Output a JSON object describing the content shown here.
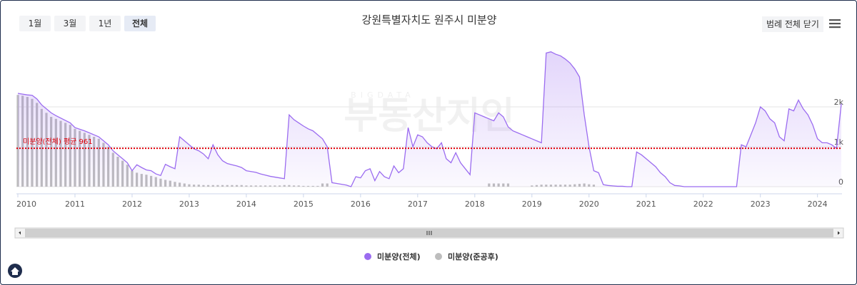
{
  "chart_data": {
    "type": "line",
    "title": "강원특별자치도 원주시 미분양",
    "buttons": [
      "1월",
      "3월",
      "1년",
      "전체"
    ],
    "active_button": 3,
    "legend_toggle": "범례 전체 닫기",
    "watermark": [
      "BIGDATA",
      "부동산지인"
    ],
    "categories": [
      "2010",
      null,
      null,
      null,
      null,
      null,
      null,
      null,
      null,
      null,
      null,
      null,
      "2011",
      null,
      null,
      null,
      null,
      null,
      null,
      null,
      null,
      null,
      null,
      null,
      "2012",
      null,
      null,
      null,
      null,
      null,
      null,
      null,
      null,
      null,
      null,
      null,
      "2013",
      null,
      null,
      null,
      null,
      null,
      null,
      null,
      null,
      null,
      null,
      null,
      "2014",
      null,
      null,
      null,
      null,
      null,
      null,
      null,
      null,
      null,
      null,
      null,
      "2015",
      null,
      null,
      null,
      null,
      null,
      null,
      null,
      null,
      null,
      null,
      null,
      "2016",
      null,
      null,
      null,
      null,
      null,
      null,
      null,
      null,
      null,
      null,
      null,
      "2017",
      null,
      null,
      null,
      null,
      null,
      null,
      null,
      null,
      null,
      null,
      null,
      "2018",
      null,
      null,
      null,
      null,
      null,
      null,
      null,
      null,
      null,
      null,
      null,
      "2019",
      null,
      null,
      null,
      null,
      null,
      null,
      null,
      null,
      null,
      null,
      null,
      "2020",
      null,
      null,
      null,
      null,
      null,
      null,
      null,
      null,
      null,
      null,
      null,
      "2021",
      null,
      null,
      null,
      null,
      null,
      null,
      null,
      null,
      null,
      null,
      null,
      "2022",
      null,
      null,
      null,
      null,
      null,
      null,
      null,
      null,
      null,
      null,
      null,
      "2023",
      null,
      null,
      null,
      null,
      null,
      null,
      null,
      null,
      null,
      null,
      null,
      "2024",
      null,
      null,
      null,
      null,
      null
    ],
    "series": [
      {
        "name": "미분양(전체)",
        "color": "#9b6cf0",
        "kind": "area",
        "values": [
          2340,
          2320,
          2300,
          2290,
          2200,
          2050,
          1950,
          1850,
          1780,
          1720,
          1660,
          1600,
          1480,
          1440,
          1400,
          1350,
          1300,
          1250,
          1150,
          1050,
          900,
          800,
          700,
          600,
          400,
          550,
          480,
          420,
          400,
          320,
          280,
          560,
          500,
          450,
          1250,
          1150,
          1050,
          950,
          900,
          820,
          700,
          1050,
          800,
          650,
          580,
          550,
          520,
          480,
          400,
          380,
          360,
          320,
          290,
          260,
          240,
          220,
          200,
          1800,
          1680,
          1600,
          1520,
          1450,
          1400,
          1300,
          1200,
          1000,
          100,
          80,
          60,
          40,
          0,
          250,
          220,
          400,
          450,
          150,
          380,
          250,
          200,
          520,
          350,
          450,
          1480,
          1000,
          1300,
          1250,
          1100,
          1000,
          950,
          1100,
          700,
          600,
          850,
          600,
          450,
          300,
          1850,
          1800,
          1750,
          1700,
          1650,
          1850,
          1750,
          1500,
          1400,
          1350,
          1300,
          1250,
          1200,
          1150,
          1100,
          3350,
          3380,
          3320,
          3280,
          3200,
          3100,
          2950,
          2750,
          1800,
          1000,
          400,
          350,
          50,
          30,
          20,
          10,
          10,
          0,
          0,
          870,
          800,
          700,
          600,
          500,
          350,
          250,
          100,
          30,
          20,
          0,
          0,
          0,
          0,
          0,
          0,
          0,
          0,
          0,
          0,
          0,
          0,
          1050,
          1000,
          1300,
          1600,
          2000,
          1900,
          1700,
          1600,
          1250,
          1150,
          1950,
          1900,
          2170,
          1950,
          1800,
          1550,
          1200,
          1100,
          1100,
          1050,
          960,
          2080
        ]
      },
      {
        "name": "미분양(준공후)",
        "color": "#bdbdbd",
        "kind": "bar",
        "values": [
          2300,
          2280,
          2250,
          2200,
          2100,
          1950,
          1850,
          1750,
          1700,
          1650,
          1600,
          1550,
          1450,
          1400,
          1350,
          1300,
          1250,
          1200,
          1100,
          1000,
          850,
          750,
          650,
          550,
          400,
          350,
          320,
          300,
          270,
          240,
          200,
          170,
          150,
          120,
          100,
          80,
          60,
          50,
          50,
          40,
          40,
          40,
          40,
          40,
          40,
          40,
          40,
          40,
          30,
          30,
          30,
          30,
          30,
          30,
          30,
          30,
          40,
          40,
          30,
          30,
          20,
          20,
          20,
          20,
          80,
          80,
          0,
          0,
          0,
          0,
          0,
          0,
          0,
          0,
          0,
          0,
          0,
          0,
          0,
          0,
          0,
          0,
          0,
          0,
          0,
          0,
          0,
          0,
          0,
          0,
          0,
          0,
          0,
          0,
          0,
          0,
          0,
          0,
          0,
          80,
          80,
          80,
          80,
          80,
          0,
          0,
          0,
          0,
          30,
          40,
          50,
          50,
          50,
          50,
          50,
          50,
          50,
          60,
          70,
          80,
          60,
          50,
          0,
          0,
          0,
          0,
          0,
          0,
          0,
          0,
          0,
          0,
          0,
          0,
          0,
          0,
          0,
          0,
          0,
          0,
          0,
          0,
          0,
          0,
          0,
          0,
          0,
          0,
          0,
          0,
          0,
          0,
          0,
          0,
          0,
          0,
          0,
          0,
          0,
          0,
          0,
          0,
          0,
          0,
          0,
          0,
          0,
          0,
          0,
          0,
          0,
          0,
          0,
          0
        ]
      }
    ],
    "average_line": {
      "value": 961,
      "label": "미분양(전체) 평균 961",
      "color": "#e0000a"
    },
    "ylim": [
      0,
      3500
    ],
    "yticks": [
      {
        "value": 0,
        "label": "0"
      },
      {
        "value": 1000,
        "label": "1k"
      },
      {
        "value": 2000,
        "label": "2k"
      }
    ],
    "grid": true,
    "legend": "bottom"
  }
}
